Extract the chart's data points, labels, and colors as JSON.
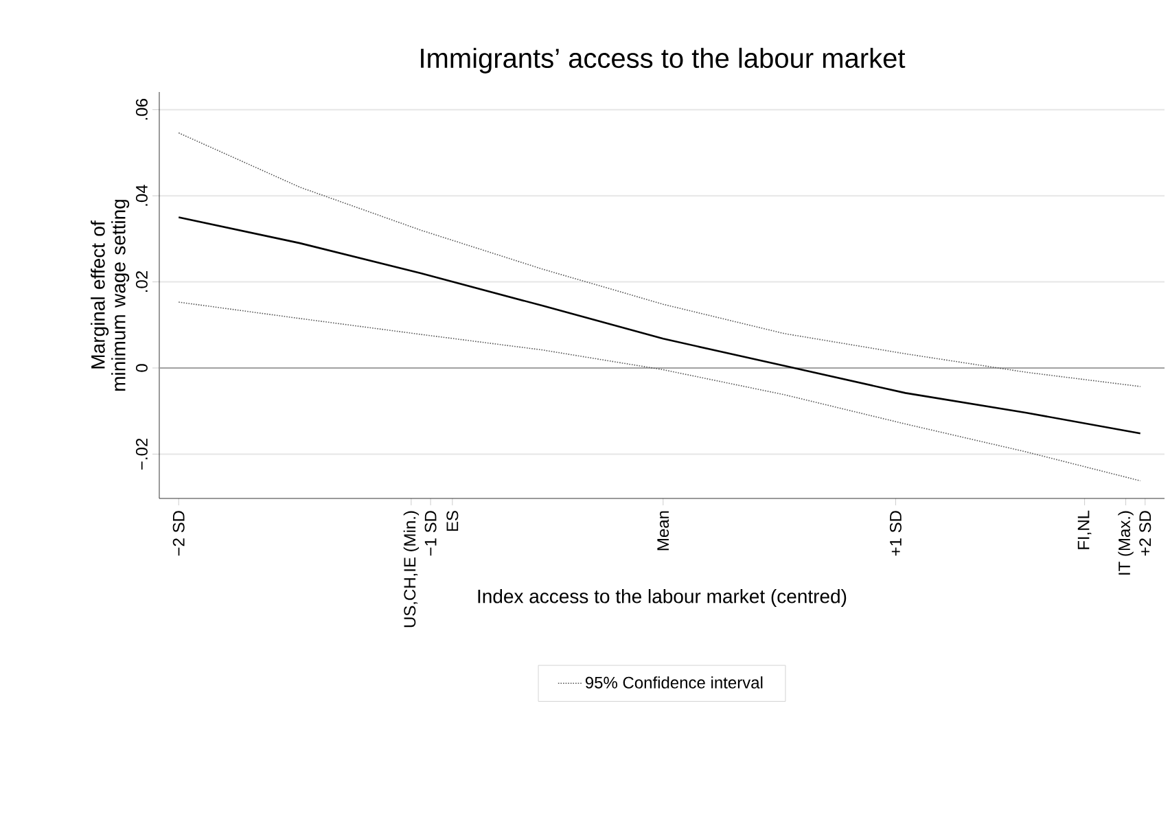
{
  "chart_data": {
    "type": "line",
    "title": "Immigrants’ access to the labour market",
    "xlabel": "Index access to the labour market (centred)",
    "ylabel": "Marginal effect of minimum wage setting",
    "x": [
      -2,
      -1.5,
      -1,
      -0.5,
      0,
      0.5,
      1,
      1.5,
      1.97
    ],
    "series": [
      {
        "color": "#000000",
        "line_style": "solid",
        "values": [
          0.035,
          0.029,
          0.022,
          0.0145,
          0.0068,
          0.0005,
          -0.0058,
          -0.0104,
          -0.0152
        ]
      },
      {
        "name": "95% Confidence interval",
        "color": "#555555",
        "line_style": "dotted",
        "values": [
          0.0546,
          0.042,
          0.032,
          0.023,
          0.0148,
          0.008,
          0.0033,
          -0.001,
          -0.0043
        ]
      },
      {
        "color": "#555555",
        "line_style": "dotted",
        "values": [
          0.0153,
          0.0115,
          0.0078,
          0.0042,
          -0.0004,
          -0.0062,
          -0.013,
          -0.0195,
          -0.0262
        ]
      }
    ],
    "xlim": [
      -2.08,
      2.07
    ],
    "ylim": [
      -0.0303,
      0.0641
    ],
    "xticks": [
      {
        "value": -2,
        "label": "−2 SD"
      },
      {
        "value": -1.04,
        "label": "US,CH,IE (Min.)"
      },
      {
        "value": -0.96,
        "label": "−1 SD"
      },
      {
        "value": -0.87,
        "label": "ES"
      },
      {
        "value": 0,
        "label": "Mean"
      },
      {
        "value": 0.96,
        "label": "+1 SD"
      },
      {
        "value": 1.74,
        "label": "FI,NL"
      },
      {
        "value": 1.91,
        "label": "IT (Max.)"
      },
      {
        "value": 1.99,
        "label": "+2 SD"
      }
    ],
    "yticks": [
      {
        "value": -0.02,
        "label": "−.02"
      },
      0,
      {
        "value": 0.02,
        "label": ".02"
      },
      {
        "value": 0.04,
        "label": ".04"
      },
      {
        "value": 0.06,
        "label": ".06"
      }
    ],
    "ref_lines": [
      {
        "axis": "y",
        "value": 0,
        "color": "#a0a0a0"
      }
    ],
    "grid": "y",
    "legend": "bottom"
  }
}
